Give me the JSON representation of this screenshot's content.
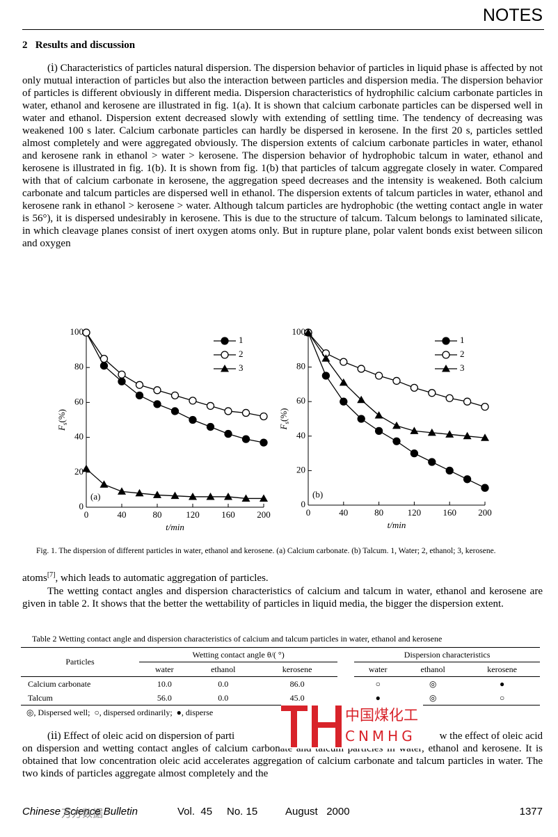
{
  "header": {
    "section_label": "NOTES"
  },
  "section_heading": "2   Results and discussion",
  "paragraph_1": "(ⅰ) Characteristics of particles natural dispersion.  The dispersion behavior of particles in liquid phase is affected by not only mutual interaction of particles but also the interaction between particles and dispersion media. The dispersion behavior of particles is different obviously in different media. Dispersion characteristics of hydrophilic calcium carbonate particles in water, ethanol and kerosene are illustrated in fig. 1(a). It is shown that calcium carbonate particles can be dispersed well in water and ethanol. Dispersion extent decreased slowly with extending of settling time. The tendency of decreasing was weakened 100 s later. Calcium carbonate particles can hardly be dispersed in kerosene. In the first 20 s, particles settled almost completely and were aggregated obviously. The dispersion extents of calcium carbonate particles in water, ethanol and kerosene rank in ethanol > water > kerosene. The dispersion behavior of hydrophobic talcum in water, ethanol and kerosene is illustrated in fig. 1(b). It is shown from fig. 1(b) that particles of talcum aggregate closely in water. Compared with that of calcium carbonate in kerosene, the aggregation speed decreases and the intensity is weakened. Both calcium carbonate and talcum particles are dispersed well in ethanol. The dispersion extents of talcum particles in water, ethanol and kerosene rank in ethanol > kerosene > water. Although talcum particles are hydrophobic (the wetting contact angle in water is 56°), it is dispersed undesirably in kerosene. This is due to the structure of talcum. Talcum belongs to laminated silicate, in which cleavage planes consist of inert oxygen atoms only. But in rupture plane, polar valent bonds exist between silicon and oxygen",
  "figure": {
    "caption": "Fig. 1.   The dispersion of different particles in water, ethanol and kerosene. (a) Calcium carbonate. (b) Talcum. 1, Water; 2, ethanol; 3, kerosene.",
    "panels": [
      {
        "type": "line",
        "panel_label": "(a)",
        "xlabel": "t/min",
        "ylabel": {
          "symbol": "F",
          "subscript": "s",
          "unit": "(%)"
        },
        "x": [
          0,
          20,
          40,
          60,
          80,
          100,
          120,
          140,
          160,
          180,
          200
        ],
        "xlim": [
          0,
          200
        ],
        "xticks": [
          0,
          40,
          80,
          120,
          160,
          200
        ],
        "ylim": [
          0,
          100
        ],
        "yticks": [
          0,
          20,
          40,
          60,
          80,
          100
        ],
        "legend": "upper right",
        "color": "#000000",
        "series": [
          {
            "name": "1",
            "marker": "filled-circle",
            "values": [
              100,
              81,
              72,
              64,
              59,
              55,
              50,
              46,
              42,
              39,
              37
            ]
          },
          {
            "name": "2",
            "marker": "open-circle",
            "values": [
              100,
              85,
              76,
              70,
              67,
              64,
              61,
              58,
              55,
              54,
              52
            ]
          },
          {
            "name": "3",
            "marker": "triangle",
            "values": [
              22,
              13,
              9,
              8,
              7,
              6.5,
              6,
              6,
              6,
              5,
              5
            ]
          }
        ]
      },
      {
        "type": "line",
        "panel_label": "(b)",
        "xlabel": "t/min",
        "ylabel": {
          "symbol": "F",
          "subscript": "s",
          "unit": "(%)"
        },
        "x": [
          0,
          20,
          40,
          60,
          80,
          100,
          120,
          140,
          160,
          180,
          200
        ],
        "xlim": [
          0,
          200
        ],
        "xticks": [
          0,
          40,
          80,
          120,
          160,
          200
        ],
        "ylim": [
          0,
          100
        ],
        "yticks": [
          0,
          20,
          40,
          60,
          80,
          100
        ],
        "legend": "upper right",
        "color": "#000000",
        "series": [
          {
            "name": "1",
            "marker": "filled-circle",
            "values": [
              100,
              75,
              60,
              50,
              43,
              37,
              30,
              25,
              20,
              15,
              10
            ]
          },
          {
            "name": "2",
            "marker": "open-circle",
            "values": [
              100,
              88,
              83,
              79,
              75,
              72,
              68,
              65,
              62,
              60,
              57
            ]
          },
          {
            "name": "3",
            "marker": "triangle",
            "values": [
              100,
              85,
              71,
              61,
              52,
              46,
              43,
              42,
              41,
              40,
              39
            ]
          }
        ]
      }
    ]
  },
  "paragraph_2": {
    "text": "atoms",
    "citation": "[7]",
    "rest": ", which leads to automatic aggregation of particles."
  },
  "paragraph_3": "The wetting contact angles and dispersion characteristics of calcium and talcum in water, ethanol and kerosene are given in table 2. It shows that the better the wettability of particles in liquid media, the bigger the dispersion extent.",
  "table": {
    "caption": "Table 2  Wetting contact angle and dispersion characteristics of calcium and talcum particles in water, ethanol and kerosene",
    "row_header": "Particles",
    "groups": [
      "Wetting contact angle θ/( °)",
      "Dispersion characteristics"
    ],
    "columns": [
      "water",
      "ethanol",
      "kerosene",
      "water",
      "ethanol",
      "kerosene"
    ],
    "rows": [
      [
        "Calcium carbonate",
        "10.0",
        "0.0",
        "86.0",
        "○",
        "◎",
        "●"
      ],
      [
        "Talcum",
        "56.0",
        "0.0",
        "45.0",
        "●",
        "◎",
        "○"
      ]
    ],
    "footnote": "◎, Dispersed well;  ○, dispersed ordinarily;  ●, disperse"
  },
  "paragraph_4": {
    "first_left": "(ⅱ) Effect of oleic acid on dispersion of parti",
    "first_right": "w the effect of oleic acid",
    "rest": "on dispersion and wetting contact angles of calcium carbonate and talcum particles in water, ethanol and kerosene. It is obtained that low concentration oleic acid accelerates aggregation of calcium carbonate and talcum particles in water. The two kinds of particles aggregate almost completely and the"
  },
  "watermark": {
    "name": "中国煤化工",
    "code": "CNMHG",
    "stamp": "万方数据"
  },
  "footer": {
    "journal": "Chinese Science Bulletin",
    "volume": "Vol.  45",
    "issue": "No. 15",
    "date": "August   2000",
    "page": "1377"
  }
}
